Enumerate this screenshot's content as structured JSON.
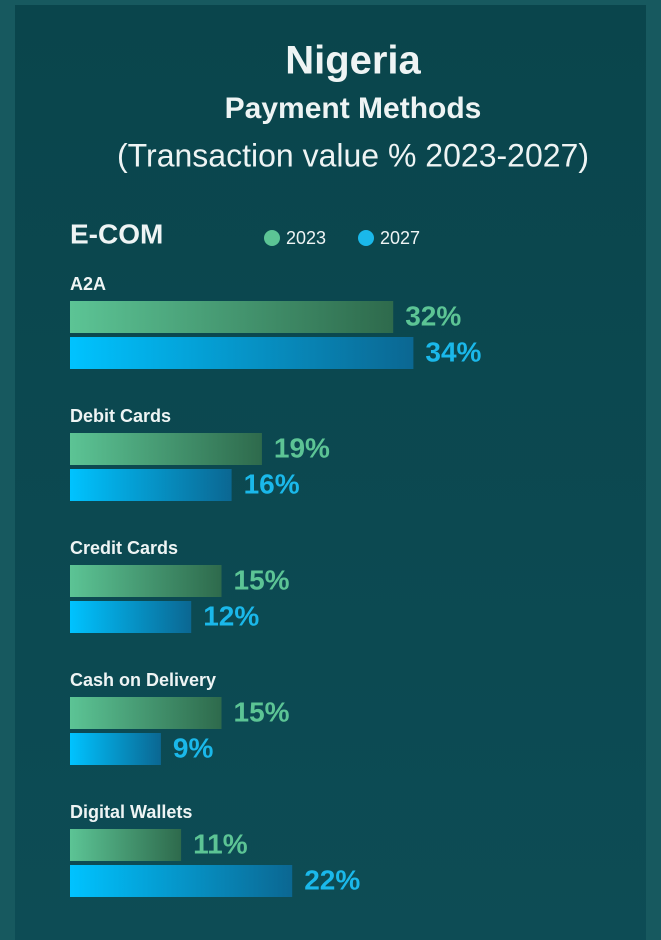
{
  "chart_data": {
    "type": "bar",
    "title": "Nigeria",
    "subtitle": "Payment Methods",
    "caption": "(Transaction value % 2023-2027)",
    "section": "E-COM",
    "categories": [
      "A2A",
      "Debit Cards",
      "Credit Cards",
      "Cash on Delivery",
      "Digital Wallets"
    ],
    "series": [
      {
        "name": "2023",
        "color": "#5cc495",
        "values": [
          32,
          19,
          15,
          15,
          11
        ],
        "value_labels": [
          "32%",
          "19%",
          "15%",
          "15%",
          "11%"
        ]
      },
      {
        "name": "2027",
        "color": "#1ab8ea",
        "values": [
          34,
          16,
          12,
          9,
          22
        ],
        "value_labels": [
          "34%",
          "16%",
          "12%",
          "9%",
          "22%"
        ]
      }
    ]
  }
}
